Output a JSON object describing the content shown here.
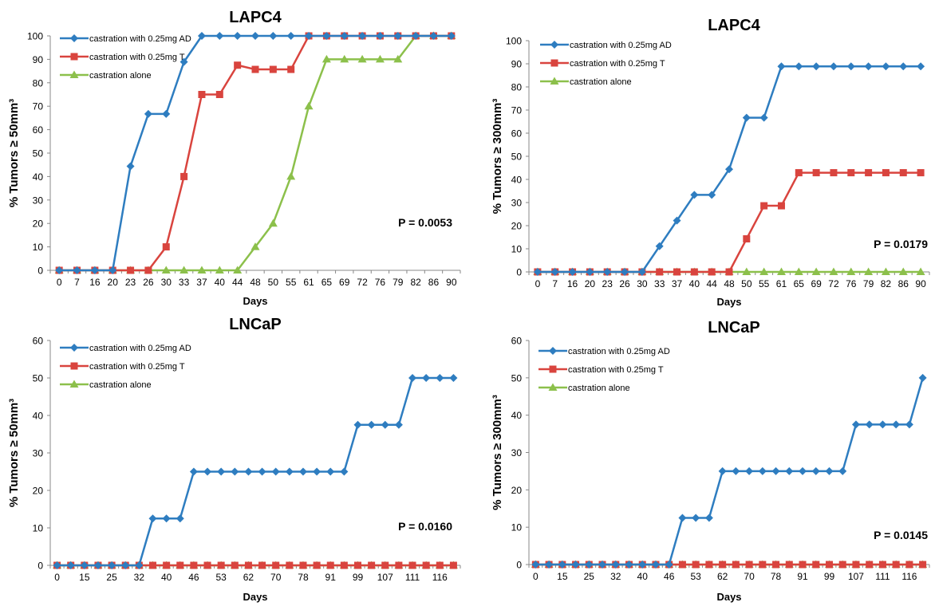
{
  "colors": {
    "AD": "#2e7dc0",
    "T": "#d9443e",
    "alone": "#8cc04b"
  },
  "chart_data": [
    {
      "type": "line",
      "title": "LAPC4",
      "xlabel": "Days",
      "ylabel": "% Tumors ≥ 50mm³",
      "ylim": [
        0,
        100
      ],
      "yticks": [
        0,
        10,
        20,
        30,
        40,
        50,
        60,
        70,
        80,
        90,
        100
      ],
      "categories": [
        "0",
        "7",
        "16",
        "20",
        "23",
        "26",
        "30",
        "33",
        "37",
        "40",
        "44",
        "48",
        "50",
        "55",
        "61",
        "65",
        "69",
        "72",
        "76",
        "79",
        "82",
        "86",
        "90"
      ],
      "legend_position": "top-left",
      "annotation": "P = 0.0053",
      "series": [
        {
          "name": "castration with 0.25mg AD",
          "color": "#2e7dc0",
          "marker": "diamond",
          "values": [
            0,
            0,
            0,
            0,
            44.4,
            66.7,
            66.7,
            88.9,
            100,
            100,
            100,
            100,
            100,
            100,
            100,
            100,
            100,
            100,
            100,
            100,
            100,
            100,
            100
          ]
        },
        {
          "name": "castration with 0.25mg T",
          "color": "#d9443e",
          "marker": "square",
          "values": [
            0,
            0,
            0,
            0,
            0,
            0,
            10,
            40,
            75,
            75,
            87.5,
            85.7,
            85.7,
            85.7,
            100,
            100,
            100,
            100,
            100,
            100,
            100,
            100,
            100
          ]
        },
        {
          "name": "castration alone",
          "color": "#8cc04b",
          "marker": "triangle",
          "values": [
            0,
            0,
            0,
            0,
            0,
            0,
            0,
            0,
            0,
            0,
            0,
            10,
            20,
            40,
            70,
            90,
            90,
            90,
            90,
            90,
            100,
            100,
            100
          ]
        }
      ]
    },
    {
      "type": "line",
      "title": "LAPC4",
      "xlabel": "Days",
      "ylabel": "% Tumors ≥ 300mm³",
      "ylim": [
        0,
        100
      ],
      "yticks": [
        0,
        10,
        20,
        30,
        40,
        50,
        60,
        70,
        80,
        90,
        100
      ],
      "categories": [
        "0",
        "7",
        "16",
        "20",
        "23",
        "26",
        "30",
        "33",
        "37",
        "40",
        "44",
        "48",
        "50",
        "55",
        "61",
        "65",
        "69",
        "72",
        "76",
        "79",
        "82",
        "86",
        "90"
      ],
      "legend_position": "top-left",
      "annotation": "P = 0.0179",
      "series": [
        {
          "name": "castration with 0.25mg AD",
          "color": "#2e7dc0",
          "marker": "diamond",
          "values": [
            0,
            0,
            0,
            0,
            0,
            0,
            0,
            11.1,
            22.2,
            33.3,
            33.3,
            44.4,
            66.7,
            66.7,
            88.9,
            88.9,
            88.9,
            88.9,
            88.9,
            88.9,
            88.9,
            88.9,
            88.9
          ]
        },
        {
          "name": "castration with 0.25mg T",
          "color": "#d9443e",
          "marker": "square",
          "values": [
            0,
            0,
            0,
            0,
            0,
            0,
            0,
            0,
            0,
            0,
            0,
            0,
            14.3,
            28.6,
            28.6,
            42.9,
            42.9,
            42.9,
            42.9,
            42.9,
            42.9,
            42.9,
            42.9
          ]
        },
        {
          "name": "castration alone",
          "color": "#8cc04b",
          "marker": "triangle",
          "values": [
            0,
            0,
            0,
            0,
            0,
            0,
            0,
            0,
            0,
            0,
            0,
            0,
            0,
            0,
            0,
            0,
            0,
            0,
            0,
            0,
            0,
            0,
            0
          ]
        }
      ]
    },
    {
      "type": "line",
      "title": "LNCaP",
      "xlabel": "Days",
      "ylabel": "% Tumors ≥ 50mm³",
      "ylim": [
        0,
        60
      ],
      "yticks": [
        0,
        10,
        20,
        30,
        40,
        50,
        60
      ],
      "categories": [
        "0",
        "",
        "15",
        "",
        "25",
        "",
        "32",
        "",
        "40",
        "",
        "46",
        "",
        "53",
        "",
        "62",
        "",
        "70",
        "",
        "78",
        "",
        "91",
        "",
        "99",
        "",
        "107",
        "",
        "111",
        "",
        "116",
        ""
      ],
      "legend_position": "top-left",
      "annotation": "P = 0.0160",
      "series": [
        {
          "name": "castration with 0.25mg AD",
          "color": "#2e7dc0",
          "marker": "diamond",
          "values": [
            0,
            0,
            0,
            0,
            0,
            0,
            0,
            12.5,
            12.5,
            12.5,
            25,
            25,
            25,
            25,
            25,
            25,
            25,
            25,
            25,
            25,
            25,
            25,
            37.5,
            37.5,
            37.5,
            37.5,
            50,
            50,
            50,
            50
          ]
        },
        {
          "name": "castration with 0.25mg T",
          "color": "#d9443e",
          "marker": "square",
          "values": [
            0,
            0,
            0,
            0,
            0,
            0,
            0,
            0,
            0,
            0,
            0,
            0,
            0,
            0,
            0,
            0,
            0,
            0,
            0,
            0,
            0,
            0,
            0,
            0,
            0,
            0,
            0,
            0,
            0,
            0
          ]
        },
        {
          "name": "castration alone",
          "color": "#8cc04b",
          "marker": "triangle",
          "values": [
            0,
            0,
            0,
            0,
            0,
            0,
            0,
            0,
            0,
            0,
            0,
            0,
            0,
            0,
            0,
            0,
            0,
            0,
            0,
            0,
            0,
            0,
            0,
            0,
            0,
            0,
            0,
            0,
            0,
            0
          ]
        }
      ]
    },
    {
      "type": "line",
      "title": "LNCaP",
      "xlabel": "Days",
      "ylabel": "% Tumors ≥ 300mm³",
      "ylim": [
        0,
        60
      ],
      "yticks": [
        0,
        10,
        20,
        30,
        40,
        50,
        60
      ],
      "categories": [
        "0",
        "",
        "15",
        "",
        "25",
        "",
        "32",
        "",
        "40",
        "",
        "46",
        "",
        "53",
        "",
        "62",
        "",
        "70",
        "",
        "78",
        "",
        "91",
        "",
        "99",
        "",
        "107",
        "",
        "111",
        "",
        "116",
        ""
      ],
      "legend_position": "top-left",
      "annotation": "P = 0.0145",
      "series": [
        {
          "name": "castration with 0.25mg AD",
          "color": "#2e7dc0",
          "marker": "diamond",
          "values": [
            0,
            0,
            0,
            0,
            0,
            0,
            0,
            0,
            0,
            0,
            0,
            12.5,
            12.5,
            12.5,
            25,
            25,
            25,
            25,
            25,
            25,
            25,
            25,
            25,
            25,
            37.5,
            37.5,
            37.5,
            37.5,
            37.5,
            50
          ]
        },
        {
          "name": "castration with 0.25mg T",
          "color": "#d9443e",
          "marker": "square",
          "values": [
            0,
            0,
            0,
            0,
            0,
            0,
            0,
            0,
            0,
            0,
            0,
            0,
            0,
            0,
            0,
            0,
            0,
            0,
            0,
            0,
            0,
            0,
            0,
            0,
            0,
            0,
            0,
            0,
            0,
            0
          ]
        },
        {
          "name": "castration alone",
          "color": "#8cc04b",
          "marker": "triangle",
          "values": [
            0,
            0,
            0,
            0,
            0,
            0,
            0,
            0,
            0,
            0,
            0,
            0,
            0,
            0,
            0,
            0,
            0,
            0,
            0,
            0,
            0,
            0,
            0,
            0,
            0,
            0,
            0,
            0,
            0,
            0
          ]
        }
      ]
    }
  ]
}
